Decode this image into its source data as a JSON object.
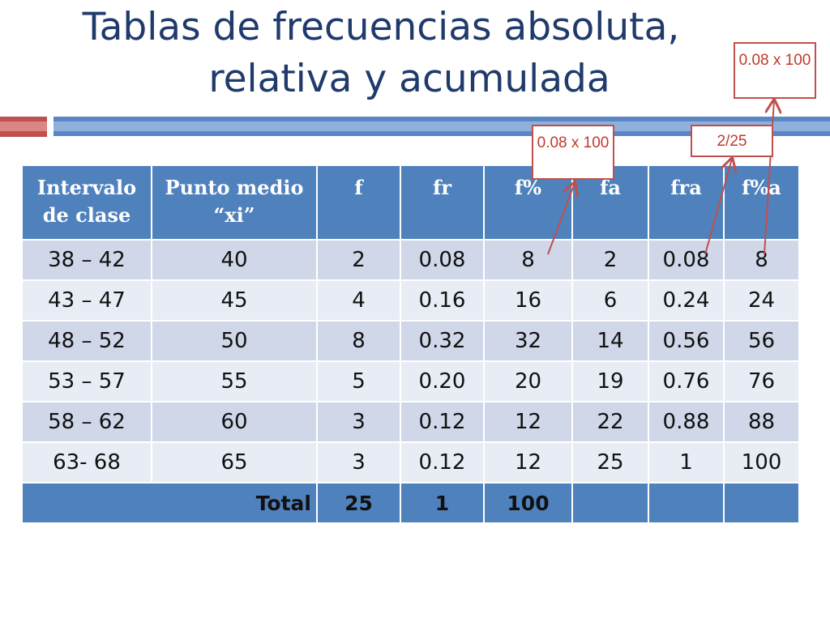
{
  "slide": {
    "title_line1": "Tablas de frecuencias absoluta,",
    "title_line2": "relativa y acumulada"
  },
  "table": {
    "headers": [
      "Intervalo de clase",
      "Punto medio “xi”",
      "f",
      "fr",
      "f%",
      "fa",
      "fra",
      "f%a"
    ],
    "rows": [
      [
        "38 – 42",
        "40",
        "2",
        "0.08",
        "8",
        "2",
        "0.08",
        "8"
      ],
      [
        "43 – 47",
        "45",
        "4",
        "0.16",
        "16",
        "6",
        "0.24",
        "24"
      ],
      [
        "48 – 52",
        "50",
        "8",
        "0.32",
        "32",
        "14",
        "0.56",
        "56"
      ],
      [
        "53 – 57",
        "55",
        "5",
        "0.20",
        "20",
        "19",
        "0.76",
        "76"
      ],
      [
        "58 – 62",
        "60",
        "3",
        "0.12",
        "12",
        "22",
        "0.88",
        "88"
      ],
      [
        "63- 68",
        "65",
        "3",
        "0.12",
        "12",
        "25",
        "1",
        "100"
      ]
    ],
    "total": {
      "label": "Total",
      "f": "25",
      "fr": "1",
      "fp": "100"
    }
  },
  "annotations": {
    "note_fp": "0.08 x 100",
    "note_fra": "2/25",
    "note_fpa": "0.08 x 100",
    "color": "#c0504d"
  }
}
